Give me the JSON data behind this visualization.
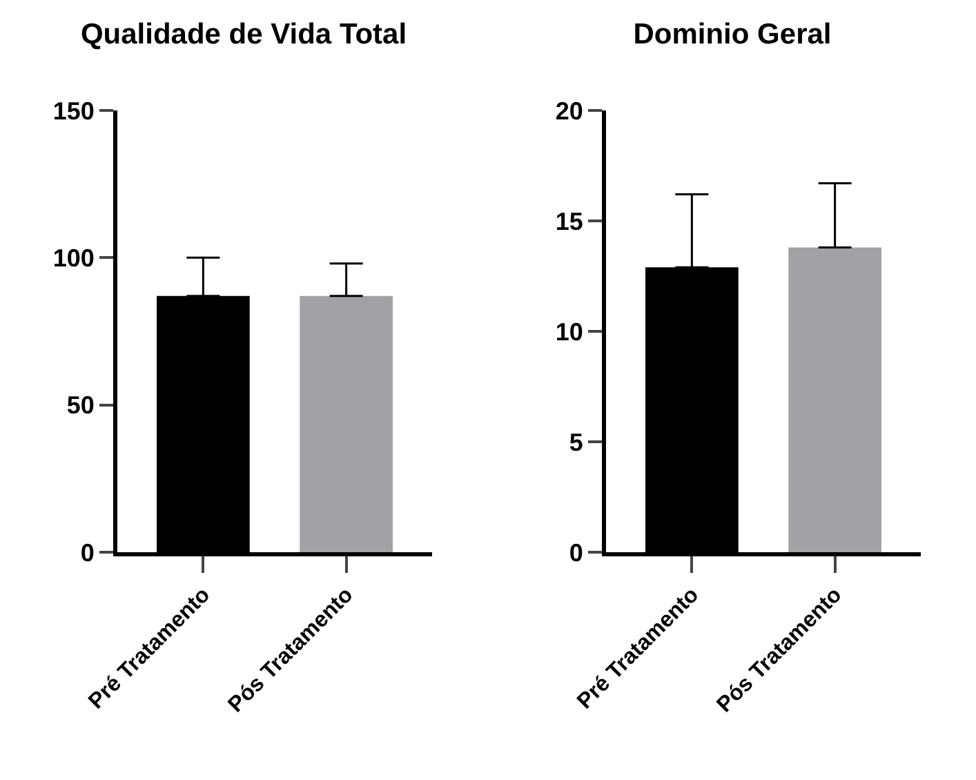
{
  "chart_data": [
    {
      "type": "bar",
      "title": "Qualidade de Vida Total",
      "categories": [
        "Pré Tratamento",
        "Pós Tratamento"
      ],
      "values": [
        87,
        87
      ],
      "colors": [
        "#000000",
        "#a2a2a6"
      ],
      "errors": [
        [
          87,
          100
        ],
        [
          87,
          98
        ]
      ],
      "ylim": [
        0,
        150
      ],
      "yticks": [
        0,
        50,
        100,
        150
      ],
      "grid": false
    },
    {
      "type": "bar",
      "title": "Dominio Geral",
      "categories": [
        "Pré Tratamento",
        "Pós Tratamento"
      ],
      "values": [
        12.9,
        13.8
      ],
      "colors": [
        "#000000",
        "#a2a2a6"
      ],
      "errors": [
        [
          12.9,
          16.2
        ],
        [
          13.8,
          16.7
        ]
      ],
      "ylim": [
        0,
        20
      ],
      "yticks": [
        0,
        5,
        10,
        15,
        20
      ],
      "grid": false
    }
  ]
}
